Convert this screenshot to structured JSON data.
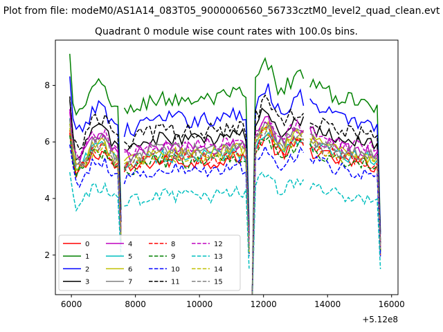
{
  "chart_data": {
    "type": "line",
    "suptitle": "Plot from file: modeM0/AS1A14_083T05_9000006560_56733cztM0_level2_quad_clean.evt",
    "title": "Quadrant 0 module wise count rates with 100.0s bins.",
    "xlabel": "",
    "ylabel": "",
    "x_offset_label": "+5.12e8",
    "xlim": [
      5500,
      16200
    ],
    "ylim": [
      0.6,
      9.6
    ],
    "x_ticks": [
      6000,
      8000,
      10000,
      12000,
      14000,
      16000
    ],
    "x_tick_labels": [
      "6000",
      "8000",
      "10000",
      "12000",
      "14000",
      "16000"
    ],
    "y_ticks": [
      2,
      4,
      6,
      8
    ],
    "y_tick_labels": [
      "2",
      "4",
      "6",
      "8"
    ],
    "grid": false,
    "legend_position": "lower-left",
    "segments": [
      [
        5950,
        7550
      ],
      [
        7650,
        11550
      ],
      [
        11650,
        13250
      ],
      [
        13450,
        15650
      ]
    ],
    "bin_width": 100.0,
    "dips": [
      {
        "x": 6200,
        "frac": 0.35
      },
      {
        "x": 7550,
        "frac": 0.5
      },
      {
        "x": 11550,
        "frac": 0.6
      },
      {
        "x": 11650,
        "frac": 0.9
      },
      {
        "x": 15650,
        "frac": 0.6
      }
    ],
    "shape_profile": [
      [
        5950,
        1.2
      ],
      [
        6100,
        0.9
      ],
      [
        6350,
        0.95
      ],
      [
        6700,
        1.05
      ],
      [
        7000,
        1.07
      ],
      [
        7300,
        0.98
      ],
      [
        7650,
        0.93
      ],
      [
        8500,
        1.0
      ],
      [
        9500,
        1.0
      ],
      [
        10500,
        1.0
      ],
      [
        11300,
        1.03
      ],
      [
        11550,
        0.98
      ],
      [
        11800,
        1.1
      ],
      [
        12100,
        1.18
      ],
      [
        12500,
        1.03
      ],
      [
        12900,
        1.1
      ],
      [
        13200,
        1.12
      ],
      [
        13600,
        1.06
      ],
      [
        14500,
        1.0
      ],
      [
        15650,
        0.97
      ]
    ],
    "series": [
      {
        "name": "0",
        "color": "#ff0000",
        "dash": "solid",
        "level": 5.3,
        "noise": 0.25
      },
      {
        "name": "1",
        "color": "#008000",
        "dash": "solid",
        "level": 7.5,
        "noise": 0.3
      },
      {
        "name": "2",
        "color": "#0000ff",
        "dash": "solid",
        "level": 6.8,
        "noise": 0.3
      },
      {
        "name": "3",
        "color": "#000000",
        "dash": "solid",
        "level": 6.1,
        "noise": 0.25
      },
      {
        "name": "4",
        "color": "#bf00bf",
        "dash": "solid",
        "level": 5.8,
        "noise": 0.25
      },
      {
        "name": "5",
        "color": "#00bfbf",
        "dash": "solid",
        "level": 5.5,
        "noise": 0.25
      },
      {
        "name": "6",
        "color": "#bfbf00",
        "dash": "solid",
        "level": 5.6,
        "noise": 0.25
      },
      {
        "name": "7",
        "color": "#808080",
        "dash": "solid",
        "level": 5.7,
        "noise": 0.25
      },
      {
        "name": "8",
        "color": "#ff0000",
        "dash": "dashed",
        "level": 5.4,
        "noise": 0.25
      },
      {
        "name": "9",
        "color": "#008000",
        "dash": "dashed",
        "level": 5.3,
        "noise": 0.25
      },
      {
        "name": "10",
        "color": "#0000ff",
        "dash": "dashed",
        "level": 5.0,
        "noise": 0.25
      },
      {
        "name": "11",
        "color": "#000000",
        "dash": "dashed",
        "level": 6.4,
        "noise": 0.3
      },
      {
        "name": "12",
        "color": "#bf00bf",
        "dash": "dashed",
        "level": 5.9,
        "noise": 0.25
      },
      {
        "name": "13",
        "color": "#00bfbf",
        "dash": "dashed",
        "level": 4.1,
        "noise": 0.25
      },
      {
        "name": "14",
        "color": "#bfbf00",
        "dash": "dashed",
        "level": 5.5,
        "noise": 0.25
      },
      {
        "name": "15",
        "color": "#808080",
        "dash": "dashed",
        "level": 5.6,
        "noise": 0.25
      }
    ]
  }
}
